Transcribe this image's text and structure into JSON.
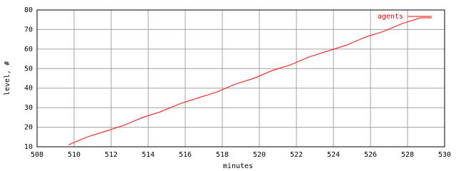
{
  "chart_data": {
    "type": "line",
    "x_label": "minutes",
    "y_label": "level, #",
    "series": [
      {
        "name": "agents",
        "color": "#ff0000",
        "x": [
          509.7,
          510.7,
          511.7,
          512.7,
          513.7,
          514.7,
          515.7,
          516.7,
          517.7,
          518.7,
          519.7,
          520.7,
          521.7,
          522.7,
          523.7,
          524.7,
          525.7,
          526.7,
          527.7,
          528.7,
          529.3
        ],
        "values": [
          11,
          15,
          18,
          21,
          25,
          28,
          32,
          35,
          38,
          42,
          45,
          49,
          52,
          56,
          59,
          62,
          66,
          69,
          73,
          76,
          76
        ]
      }
    ],
    "xlim": [
      508,
      530
    ],
    "xticks": [
      508,
      510,
      512,
      514,
      516,
      518,
      520,
      522,
      524,
      526,
      528,
      530
    ],
    "ylim": [
      10,
      80
    ],
    "yticks": [
      10,
      20,
      30,
      40,
      50,
      60,
      70,
      80
    ],
    "grid": true,
    "legend": "top-right"
  }
}
